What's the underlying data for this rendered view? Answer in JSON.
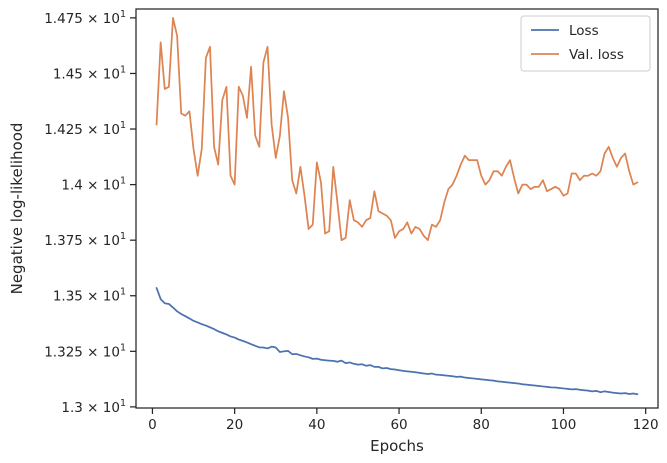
{
  "chart_data": {
    "type": "line",
    "xlabel": "Epochs",
    "ylabel": "Negative log-likelihood",
    "xlim": [
      -4,
      123
    ],
    "ylim": [
      12.995,
      14.79
    ],
    "x_ticks": [
      0,
      20,
      40,
      60,
      80,
      100,
      120
    ],
    "y_ticks": [
      {
        "value": 13.0,
        "mant": "1.3"
      },
      {
        "value": 13.25,
        "mant": "1.325"
      },
      {
        "value": 13.5,
        "mant": "1.35"
      },
      {
        "value": 13.75,
        "mant": "1.375"
      },
      {
        "value": 14.0,
        "mant": "1.4"
      },
      {
        "value": 14.25,
        "mant": "1.425"
      },
      {
        "value": 14.5,
        "mant": "1.45"
      },
      {
        "value": 14.75,
        "mant": "1.475"
      }
    ],
    "y_tick_base": "× 10",
    "y_tick_exp": "1",
    "legend_position": "upper right",
    "grid": false,
    "series": [
      {
        "name": "Loss",
        "color": "#4c72b0",
        "x_start": 1,
        "values": [
          13.535,
          13.485,
          13.466,
          13.463,
          13.447,
          13.43,
          13.418,
          13.408,
          13.398,
          13.387,
          13.38,
          13.372,
          13.366,
          13.358,
          13.35,
          13.34,
          13.333,
          13.326,
          13.317,
          13.312,
          13.303,
          13.297,
          13.29,
          13.282,
          13.275,
          13.268,
          13.267,
          13.263,
          13.271,
          13.267,
          13.247,
          13.25,
          13.252,
          13.237,
          13.238,
          13.232,
          13.227,
          13.223,
          13.216,
          13.217,
          13.212,
          13.21,
          13.208,
          13.207,
          13.203,
          13.208,
          13.197,
          13.2,
          13.194,
          13.19,
          13.192,
          13.185,
          13.188,
          13.18,
          13.18,
          13.173,
          13.175,
          13.17,
          13.168,
          13.165,
          13.162,
          13.16,
          13.158,
          13.156,
          13.153,
          13.15,
          13.148,
          13.15,
          13.145,
          13.144,
          13.142,
          13.14,
          13.138,
          13.135,
          13.136,
          13.132,
          13.13,
          13.128,
          13.126,
          13.124,
          13.122,
          13.12,
          13.118,
          13.115,
          13.113,
          13.111,
          13.109,
          13.107,
          13.105,
          13.102,
          13.1,
          13.098,
          13.096,
          13.094,
          13.092,
          13.09,
          13.088,
          13.087,
          13.085,
          13.083,
          13.081,
          13.079,
          13.08,
          13.077,
          13.075,
          13.073,
          13.07,
          13.072,
          13.066,
          13.07,
          13.067,
          13.064,
          13.062,
          13.06,
          13.062,
          13.058,
          13.06,
          13.057
        ]
      },
      {
        "name": "Val. loss",
        "color": "#dd8452",
        "x_start": 1,
        "values": [
          14.27,
          14.64,
          14.43,
          14.44,
          14.75,
          14.67,
          14.32,
          14.31,
          14.33,
          14.16,
          14.04,
          14.16,
          14.57,
          14.62,
          14.17,
          14.09,
          14.38,
          14.44,
          14.04,
          14.0,
          14.44,
          14.4,
          14.3,
          14.53,
          14.22,
          14.17,
          14.55,
          14.62,
          14.27,
          14.12,
          14.22,
          14.42,
          14.3,
          14.02,
          13.96,
          14.08,
          13.95,
          13.8,
          13.82,
          14.1,
          14.01,
          13.78,
          13.79,
          14.08,
          13.92,
          13.75,
          13.76,
          13.93,
          13.84,
          13.83,
          13.81,
          13.84,
          13.85,
          13.97,
          13.88,
          13.87,
          13.86,
          13.84,
          13.76,
          13.79,
          13.8,
          13.83,
          13.78,
          13.81,
          13.8,
          13.77,
          13.75,
          13.82,
          13.81,
          13.84,
          13.92,
          13.98,
          14.0,
          14.04,
          14.09,
          14.13,
          14.11,
          14.11,
          14.11,
          14.04,
          14.0,
          14.02,
          14.06,
          14.06,
          14.04,
          14.08,
          14.11,
          14.03,
          13.96,
          14.0,
          14.0,
          13.98,
          13.99,
          13.99,
          14.02,
          13.97,
          13.98,
          13.99,
          13.98,
          13.95,
          13.96,
          14.05,
          14.05,
          14.02,
          14.04,
          14.04,
          14.05,
          14.04,
          14.06,
          14.14,
          14.17,
          14.12,
          14.08,
          14.12,
          14.14,
          14.06,
          14.0,
          14.01
        ]
      }
    ]
  }
}
